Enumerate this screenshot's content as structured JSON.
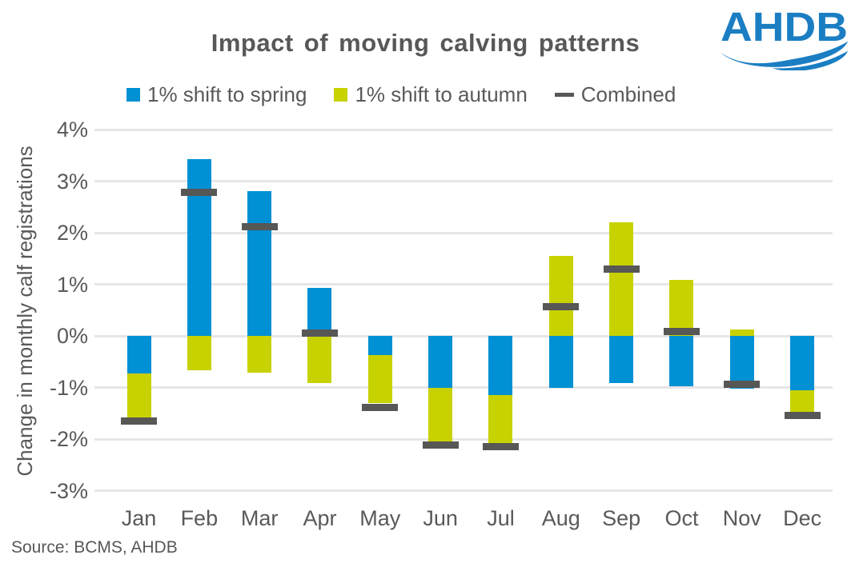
{
  "header": {
    "title": "Impact of moving calving patterns",
    "logo_text": "AHDB"
  },
  "legend": {
    "items": [
      {
        "label": "1% shift to spring",
        "marker": "square",
        "color": "#0090D4"
      },
      {
        "label": "1% shift to autumn",
        "marker": "square",
        "color": "#C8D200"
      },
      {
        "label": "Combined",
        "marker": "dash",
        "color": "#575756"
      }
    ]
  },
  "source": {
    "text": "Source: BCMS, AHDB"
  },
  "colors": {
    "spring_blue": "#0090D4",
    "autumn_green": "#C8D200",
    "combined_gray": "#575756",
    "grid": "#E6E6E6",
    "text": "#595959",
    "logo_blue": "#1B7EC3"
  },
  "chart_data": {
    "type": "bar",
    "stacked": true,
    "title": "Impact of moving calving patterns",
    "ylabel": "Change in monthly calf registrations",
    "xlabel": "",
    "categories": [
      "Jan",
      "Feb",
      "Mar",
      "Apr",
      "May",
      "Jun",
      "Jul",
      "Aug",
      "Sep",
      "Oct",
      "Nov",
      "Dec"
    ],
    "series": [
      {
        "name": "1% shift to spring",
        "color": "#0090D4",
        "values": [
          -0.73,
          3.43,
          2.81,
          0.93,
          -0.37,
          -1.0,
          -1.15,
          -1.0,
          -0.92,
          -0.98,
          -1.03,
          -1.05
        ]
      },
      {
        "name": "1% shift to autumn",
        "color": "#C8D200",
        "values": [
          -0.85,
          -0.67,
          -0.71,
          -0.92,
          -0.93,
          -1.07,
          -1.0,
          1.55,
          2.2,
          1.09,
          0.12,
          -0.45
        ]
      }
    ],
    "combined_markers": {
      "name": "Combined",
      "color": "#575756",
      "values": [
        -1.65,
        2.78,
        2.12,
        0.06,
        -1.38,
        -2.12,
        -2.15,
        0.57,
        1.29,
        0.08,
        -0.94,
        -1.55
      ]
    },
    "ylim": [
      -3,
      4
    ],
    "yticks": [
      4,
      3,
      2,
      1,
      0,
      -1,
      -2,
      -3
    ],
    "ytick_format": "percent",
    "grid": true,
    "legend_position": "top"
  }
}
